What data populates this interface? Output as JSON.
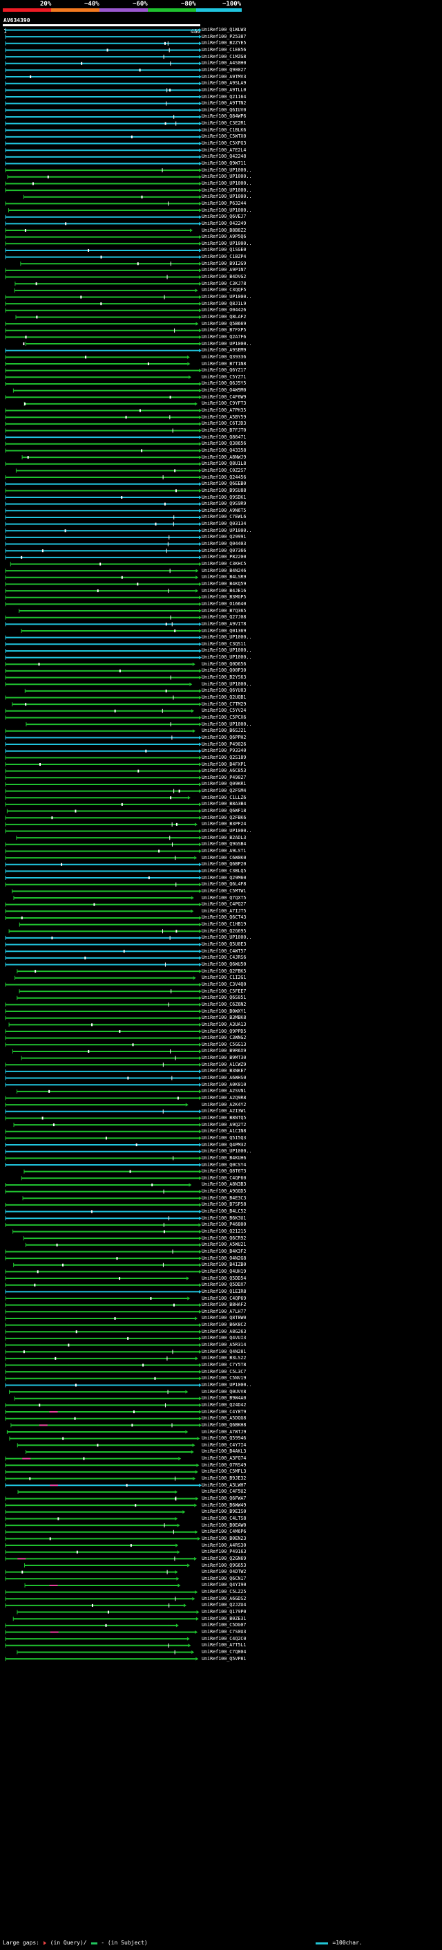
{
  "scale": {
    "ticks": [
      "20%",
      "~40%",
      "~60%",
      "~80%",
      "~100%"
    ],
    "colors": [
      "#ee1c25",
      "#f47a20",
      "#9b59d0",
      "#1fc12f",
      "#20c5de"
    ]
  },
  "query": {
    "id": "AV634390",
    "start": "1",
    "end": "480"
  },
  "colors": {
    "full": "#20c5de",
    "partial": "#1fc12f",
    "gap": "#ee3ea0",
    "mark": "#ffffff"
  },
  "hits": [
    {
      "label": "UniRef100_Q1WLW3",
      "c": 1
    },
    {
      "label": "UniRef100_P25387",
      "c": 1
    },
    {
      "label": "UniRef100_B2ZYE5",
      "c": 1
    },
    {
      "label": "UniRef100_C1E856",
      "c": 1
    },
    {
      "label": "UniRef100_C1MZG8",
      "c": 1
    },
    {
      "label": "UniRef100_A4S0H0",
      "c": 1
    },
    {
      "label": "UniRef100_Q90027",
      "c": 1
    },
    {
      "label": "UniRef100_A9TMV3",
      "c": 1
    },
    {
      "label": "UniRef100_A9SLA9",
      "c": 1
    },
    {
      "label": "UniRef100_A9TLL0",
      "c": 1
    },
    {
      "label": "UniRef100_Q21164",
      "c": 1
    },
    {
      "label": "UniRef100_A9TTN2",
      "c": 1
    },
    {
      "label": "UniRef100_Q6IUV0",
      "c": 1
    },
    {
      "label": "UniRef100_Q84WP6",
      "c": 1
    },
    {
      "label": "UniRef100_C3E2R1",
      "c": 1
    },
    {
      "label": "UniRef100_C1BLK6",
      "c": 1
    },
    {
      "label": "UniRef100_C5WTX0",
      "c": 1
    },
    {
      "label": "UniRef100_C5XFG3",
      "c": 1
    },
    {
      "label": "UniRef100_A7E2L4",
      "c": 1
    },
    {
      "label": "UniRef100_Q42248",
      "c": 1
    },
    {
      "label": "UniRef100_Q9W711",
      "c": 1
    },
    {
      "label": "UniRef100_UP1000..",
      "c": 0
    },
    {
      "label": "UniRef100_UP1000..",
      "c": 0
    },
    {
      "label": "UniRef100_UP1000..",
      "c": 0
    },
    {
      "label": "UniRef100_UP1000..",
      "c": 0
    },
    {
      "label": "UniRef100_UP1000..",
      "c": 0
    },
    {
      "label": "UniRef100_P63244",
      "c": 0
    },
    {
      "label": "UniRef100_UP1000..",
      "c": 0
    },
    {
      "label": "UniRef100_Q6VEJ7",
      "c": 1
    },
    {
      "label": "UniRef100_O42249",
      "c": 1
    },
    {
      "label": "UniRef100_B8B8Z2",
      "c": 0
    },
    {
      "label": "UniRef100_A9P5Q6",
      "c": 0
    },
    {
      "label": "UniRef100_UP1000..",
      "c": 0
    },
    {
      "label": "UniRef100_Q1SGE0",
      "c": 1
    },
    {
      "label": "UniRef100_C1BZP4",
      "c": 1
    },
    {
      "label": "UniRef100_B9I2G9",
      "c": 0
    },
    {
      "label": "UniRef100_A9P1N7",
      "c": 0
    },
    {
      "label": "UniRef100_B4DVG2",
      "c": 0
    },
    {
      "label": "UniRef100_C3KJ78",
      "c": 0
    },
    {
      "label": "UniRef100_C3QQF5",
      "c": 0
    },
    {
      "label": "UniRef100_UP1000..",
      "c": 0
    },
    {
      "label": "UniRef100_Q8J1L9",
      "c": 0
    },
    {
      "label": "UniRef100_O04426",
      "c": 0
    },
    {
      "label": "UniRef100_Q8LAF2",
      "c": 0
    },
    {
      "label": "UniRef100_Q5B669",
      "c": 0
    },
    {
      "label": "UniRef100_B7FXP5",
      "c": 0
    },
    {
      "label": "UniRef100_Q2A7F6",
      "c": 0
    },
    {
      "label": "UniRef100_UP1000..",
      "c": 0
    },
    {
      "label": "UniRef100_A9SEM9",
      "c": 1
    },
    {
      "label": "UniRef100_Q39336",
      "c": 0
    },
    {
      "label": "UniRef100_B7T1N8",
      "c": 0
    },
    {
      "label": "UniRef100_Q6YZ17",
      "c": 0
    },
    {
      "label": "UniRef100_C5YZ71",
      "c": 0
    },
    {
      "label": "UniRef100_Q6J5Y5",
      "c": 0
    },
    {
      "label": "UniRef100_O4W9M0",
      "c": 0
    },
    {
      "label": "UniRef100_C4F6W9",
      "c": 0
    },
    {
      "label": "UniRef100_C9YFT3",
      "c": 0
    },
    {
      "label": "UniRef100_A7PH35",
      "c": 0
    },
    {
      "label": "UniRef100_A5BY59",
      "c": 0
    },
    {
      "label": "UniRef100_C6TJD3",
      "c": 0
    },
    {
      "label": "UniRef100_B7FJT0",
      "c": 0
    },
    {
      "label": "UniRef100_Q86471",
      "c": 1
    },
    {
      "label": "UniRef100_Q38656",
      "c": 0
    },
    {
      "label": "UniRef100_Q43358",
      "c": 0
    },
    {
      "label": "UniRef100_A8NWJ9",
      "c": 0
    },
    {
      "label": "UniRef100_Q8U1L8",
      "c": 0
    },
    {
      "label": "UniRef100_C0Z2S7",
      "c": 0
    },
    {
      "label": "UniRef100_Q24456",
      "c": 0
    },
    {
      "label": "UniRef100_Q6EEB0",
      "c": 1
    },
    {
      "label": "UniRef100_B9SU88",
      "c": 0
    },
    {
      "label": "UniRef100_Q9SDK1",
      "c": 1
    },
    {
      "label": "UniRef100_Q9S9R9",
      "c": 1
    },
    {
      "label": "UniRef100_A9N6T5",
      "c": 1
    },
    {
      "label": "UniRef100_C7EWL6",
      "c": 1
    },
    {
      "label": "UniRef100_Q03134",
      "c": 1
    },
    {
      "label": "UniRef100_UP1000..",
      "c": 1
    },
    {
      "label": "UniRef100_Q29991",
      "c": 1
    },
    {
      "label": "UniRef100_Q04403",
      "c": 1
    },
    {
      "label": "UniRef100_Q07366",
      "c": 1
    },
    {
      "label": "UniRef100_P82200",
      "c": 1
    },
    {
      "label": "UniRef100_C3KHC5",
      "c": 0
    },
    {
      "label": "UniRef100_B4N246",
      "c": 0
    },
    {
      "label": "UniRef100_B4LSR9",
      "c": 0
    },
    {
      "label": "UniRef100_B4KQ59",
      "c": 0
    },
    {
      "label": "UniRef100_B4JE16",
      "c": 0
    },
    {
      "label": "UniRef100_B3MGP5",
      "c": 0
    },
    {
      "label": "UniRef100_O16640",
      "c": 0
    },
    {
      "label": "UniRef100_B7Q365",
      "c": 0
    },
    {
      "label": "UniRef100_Q27J08",
      "c": 0
    },
    {
      "label": "UniRef100_A9V1T8",
      "c": 1
    },
    {
      "label": "UniRef100_Q01369",
      "c": 0
    },
    {
      "label": "UniRef100_UP1000..",
      "c": 1
    },
    {
      "label": "UniRef100_C3QS11",
      "c": 1
    },
    {
      "label": "UniRef100_UP1000..",
      "c": 1
    },
    {
      "label": "UniRef100_UP1000..",
      "c": 1
    },
    {
      "label": "UniRef100_Q0D656",
      "c": 0
    },
    {
      "label": "UniRef100_Q00P30",
      "c": 0
    },
    {
      "label": "UniRef100_B2YS63",
      "c": 0
    },
    {
      "label": "UniRef100_UP1000..",
      "c": 0
    },
    {
      "label": "UniRef100_Q6YU03",
      "c": 0
    },
    {
      "label": "UniRef100_Q2UQB1",
      "c": 0
    },
    {
      "label": "UniRef100_C7TM29",
      "c": 0
    },
    {
      "label": "UniRef100_C5YV24",
      "c": 0
    },
    {
      "label": "UniRef100_C5PCX6",
      "c": 0
    },
    {
      "label": "UniRef100_UP1000..",
      "c": 0
    },
    {
      "label": "UniRef100_B6SJ21",
      "c": 0
    },
    {
      "label": "UniRef100_Q6PPH2",
      "c": 1
    },
    {
      "label": "UniRef100_P49026",
      "c": 1
    },
    {
      "label": "UniRef100_P93340",
      "c": 1
    },
    {
      "label": "UniRef100_Q2S189",
      "c": 0
    },
    {
      "label": "UniRef100_B4FXP1",
      "c": 0
    },
    {
      "label": "UniRef100_A6C853",
      "c": 0
    },
    {
      "label": "UniRef100_P49027",
      "c": 0
    },
    {
      "label": "UniRef100_Q09KR1",
      "c": 0
    },
    {
      "label": "UniRef100_Q2FSM4",
      "c": 0
    },
    {
      "label": "UniRef100_C1LLZ6",
      "c": 0
    },
    {
      "label": "UniRef100_B8A3B4",
      "c": 0
    },
    {
      "label": "UniRef100_Q6WF18",
      "c": 0
    },
    {
      "label": "UniRef100_Q2FBK6",
      "c": 0
    },
    {
      "label": "UniRef100_B3PF24",
      "c": 0
    },
    {
      "label": "UniRef100_UP1000..",
      "c": 0
    },
    {
      "label": "UniRef100_B2ADL3",
      "c": 0
    },
    {
      "label": "UniRef100_Q9GSB4",
      "c": 0
    },
    {
      "label": "UniRef100_A9LST1",
      "c": 0
    },
    {
      "label": "UniRef100_C6W0K0",
      "c": 0
    },
    {
      "label": "UniRef100_Q6BP20",
      "c": 1
    },
    {
      "label": "UniRef100_C3BLQ5",
      "c": 1
    },
    {
      "label": "UniRef100_Q29M60",
      "c": 1
    },
    {
      "label": "UniRef100_Q6L4F8",
      "c": 0
    },
    {
      "label": "UniRef100_C5MTW1",
      "c": 0
    },
    {
      "label": "UniRef100_Q7QXT5",
      "c": 0
    },
    {
      "label": "UniRef100_C4PQ27",
      "c": 0
    },
    {
      "label": "UniRef100_A7IJT5",
      "c": 0
    },
    {
      "label": "UniRef100_Q6CT43",
      "c": 0
    },
    {
      "label": "UniRef100_C1HB19",
      "c": 0
    },
    {
      "label": "UniRef100_Q2G695",
      "c": 0
    },
    {
      "label": "UniRef100_UP1000..",
      "c": 1
    },
    {
      "label": "UniRef100_Q5U0E3",
      "c": 1
    },
    {
      "label": "UniRef100_C4WT57",
      "c": 1
    },
    {
      "label": "UniRef100_C4JRS6",
      "c": 1
    },
    {
      "label": "UniRef100_Q6WU50",
      "c": 1
    },
    {
      "label": "UniRef100_Q2FBK5",
      "c": 0
    },
    {
      "label": "UniRef100_C1I2G1",
      "c": 0
    },
    {
      "label": "UniRef100_C3V4Q0",
      "c": 0
    },
    {
      "label": "UniRef100_C5FEE7",
      "c": 0
    },
    {
      "label": "UniRef100_Q6S051",
      "c": 0
    },
    {
      "label": "UniRef100_C6Z6N2",
      "c": 0
    },
    {
      "label": "UniRef100_B0WXY1",
      "c": 0
    },
    {
      "label": "UniRef100_B3MBK8",
      "c": 0
    },
    {
      "label": "UniRef100_A3UA13",
      "c": 0
    },
    {
      "label": "UniRef100_Q9PPD5",
      "c": 0
    },
    {
      "label": "UniRef100_C3WNG2",
      "c": 0
    },
    {
      "label": "UniRef100_C5GG13",
      "c": 0
    },
    {
      "label": "UniRef100_B9R6X9",
      "c": 0
    },
    {
      "label": "UniRef100_B9MT30",
      "c": 0
    },
    {
      "label": "UniRef100_A1CWZ9",
      "c": 0
    },
    {
      "label": "UniRef100_B3NKE7",
      "c": 1
    },
    {
      "label": "UniRef100_A6WHS0",
      "c": 1
    },
    {
      "label": "UniRef100_A0K010",
      "c": 1
    },
    {
      "label": "UniRef100_A2SVN1",
      "c": 0
    },
    {
      "label": "UniRef100_A2Q9R8",
      "c": 0
    },
    {
      "label": "UniRef100_A2K4Y2",
      "c": 0
    },
    {
      "label": "UniRef100_A2I3W1",
      "c": 1
    },
    {
      "label": "UniRef100_B8NTQ5",
      "c": 0
    },
    {
      "label": "UniRef100_A9Q2T2",
      "c": 0
    },
    {
      "label": "UniRef100_A1CIN8",
      "c": 0
    },
    {
      "label": "UniRef100_Q5I5Q3",
      "c": 0
    },
    {
      "label": "UniRef100_Q4PM32",
      "c": 1
    },
    {
      "label": "UniRef100_UP1000..",
      "c": 1
    },
    {
      "label": "UniRef100_B4KUH6",
      "c": 0
    },
    {
      "label": "UniRef100_Q0CSY4",
      "c": 1
    },
    {
      "label": "UniRef100_Q8T6T3",
      "c": 0
    },
    {
      "label": "UniRef100_C4QF60",
      "c": 0
    },
    {
      "label": "UniRef100_A8N3B3",
      "c": 0
    },
    {
      "label": "UniRef100_A9GGD5",
      "c": 0
    },
    {
      "label": "UniRef100_B4E3C3",
      "c": 0
    },
    {
      "label": "UniRef100_B7SP58",
      "c": 0
    },
    {
      "label": "UniRef100_B4LC52",
      "c": 1
    },
    {
      "label": "UniRef100_B6K3U1",
      "c": 1
    },
    {
      "label": "UniRef100_P46800",
      "c": 0
    },
    {
      "label": "UniRef100_Q21215",
      "c": 0
    },
    {
      "label": "UniRef100_Q6CR92",
      "c": 0
    },
    {
      "label": "UniRef100_A5WU21",
      "c": 0
    },
    {
      "label": "UniRef100_B4K3F2",
      "c": 0
    },
    {
      "label": "UniRef100_O4N2G8",
      "c": 0
    },
    {
      "label": "UniRef100_B4IZB0",
      "c": 0
    },
    {
      "label": "UniRef100_Q4UH19",
      "c": 0
    },
    {
      "label": "UniRef100_Q5DD54",
      "c": 0
    },
    {
      "label": "UniRef100_Q5DDX7",
      "c": 0
    },
    {
      "label": "UniRef100_Q1EIR8",
      "c": 1
    },
    {
      "label": "UniRef100_C4QP69",
      "c": 0
    },
    {
      "label": "UniRef100_B8HAF2",
      "c": 0
    },
    {
      "label": "UniRef100_A7LH77",
      "c": 0
    },
    {
      "label": "UniRef100_Q8T8W0",
      "c": 0
    },
    {
      "label": "UniRef100_B6K8C2",
      "c": 0
    },
    {
      "label": "UniRef100_A8G263",
      "c": 0
    },
    {
      "label": "UniRef100_Q4VUI3",
      "c": 0
    },
    {
      "label": "UniRef100_A5R314",
      "c": 0
    },
    {
      "label": "UniRef100_Q4N281",
      "c": 0
    },
    {
      "label": "UniRef100_B3LS22",
      "c": 0
    },
    {
      "label": "UniRef100_C7Y5T8",
      "c": 0
    },
    {
      "label": "UniRef100_C5L3C7",
      "c": 0
    },
    {
      "label": "UniRef100_C5NV19",
      "c": 0
    },
    {
      "label": "UniRef100_UP1000..",
      "c": 1
    },
    {
      "label": "UniRef100_Q0UVV8",
      "c": 0
    },
    {
      "label": "UniRef100_B9W4A0",
      "c": 0
    },
    {
      "label": "UniRef100_Q24D42",
      "c": 0
    },
    {
      "label": "UniRef100_C4Y8T9",
      "c": 0
    },
    {
      "label": "UniRef100_A5DQG8",
      "c": 0
    },
    {
      "label": "UniRef100_Q6BKH8",
      "c": 0
    },
    {
      "label": "UniRef100_A7WTJ9",
      "c": 0
    },
    {
      "label": "UniRef100_Q59946",
      "c": 0
    },
    {
      "label": "UniRef100_C4Y7I4",
      "c": 0
    },
    {
      "label": "UniRef100_B4AKL3",
      "c": 0
    },
    {
      "label": "UniRef100_A3FQ74",
      "c": 0
    },
    {
      "label": "UniRef100_O7RS49",
      "c": 0
    },
    {
      "label": "UniRef100_C5MFL3",
      "c": 0
    },
    {
      "label": "UniRef100_B9JE32",
      "c": 0
    },
    {
      "label": "UniRef100_A3LWH7",
      "c": 1
    },
    {
      "label": "UniRef100_C4F5U2",
      "c": 0
    },
    {
      "label": "UniRef100_Q6FWA7",
      "c": 0
    },
    {
      "label": "UniRef100_B6WW49",
      "c": 0
    },
    {
      "label": "UniRef100_B9EIS0",
      "c": 0
    },
    {
      "label": "UniRef100_C4LTS8",
      "c": 0
    },
    {
      "label": "UniRef100_B0EAW0",
      "c": 0
    },
    {
      "label": "UniRef100_C4M6P6",
      "c": 0
    },
    {
      "label": "UniRef100_B0EN23",
      "c": 0
    },
    {
      "label": "UniRef100_A4RS30",
      "c": 0
    },
    {
      "label": "UniRef100_P49163",
      "c": 0
    },
    {
      "label": "UniRef100_Q2GN69",
      "c": 0
    },
    {
      "label": "UniRef100_Q9G653",
      "c": 0
    },
    {
      "label": "UniRef100_O4DTW2",
      "c": 0
    },
    {
      "label": "UniRef100_Q6CN17",
      "c": 0
    },
    {
      "label": "UniRef100_Q4YI90",
      "c": 0
    },
    {
      "label": "UniRef100_C5LZ25",
      "c": 0
    },
    {
      "label": "UniRef100_A6GDS2",
      "c": 0
    },
    {
      "label": "UniRef100_Q2JZU4",
      "c": 0
    },
    {
      "label": "UniRef100_Q179P0",
      "c": 0
    },
    {
      "label": "UniRef100_B0ZE31",
      "c": 0
    },
    {
      "label": "UniRef100_C5DG07",
      "c": 0
    },
    {
      "label": "UniRef100_C7S0U3",
      "c": 0
    },
    {
      "label": "UniRef100_C4Q2C0",
      "c": 0
    },
    {
      "label": "UniRef100_A7T5L1",
      "c": 0
    },
    {
      "label": "UniRef100_C7Q804",
      "c": 0
    },
    {
      "label": "UniRef100_Q5VP81",
      "c": 0
    }
  ],
  "legend": {
    "gaps_label": "Large gaps:",
    "in_query": "(in Query)/",
    "in_subject": "- (in Subject)",
    "char_label": "=100char."
  }
}
